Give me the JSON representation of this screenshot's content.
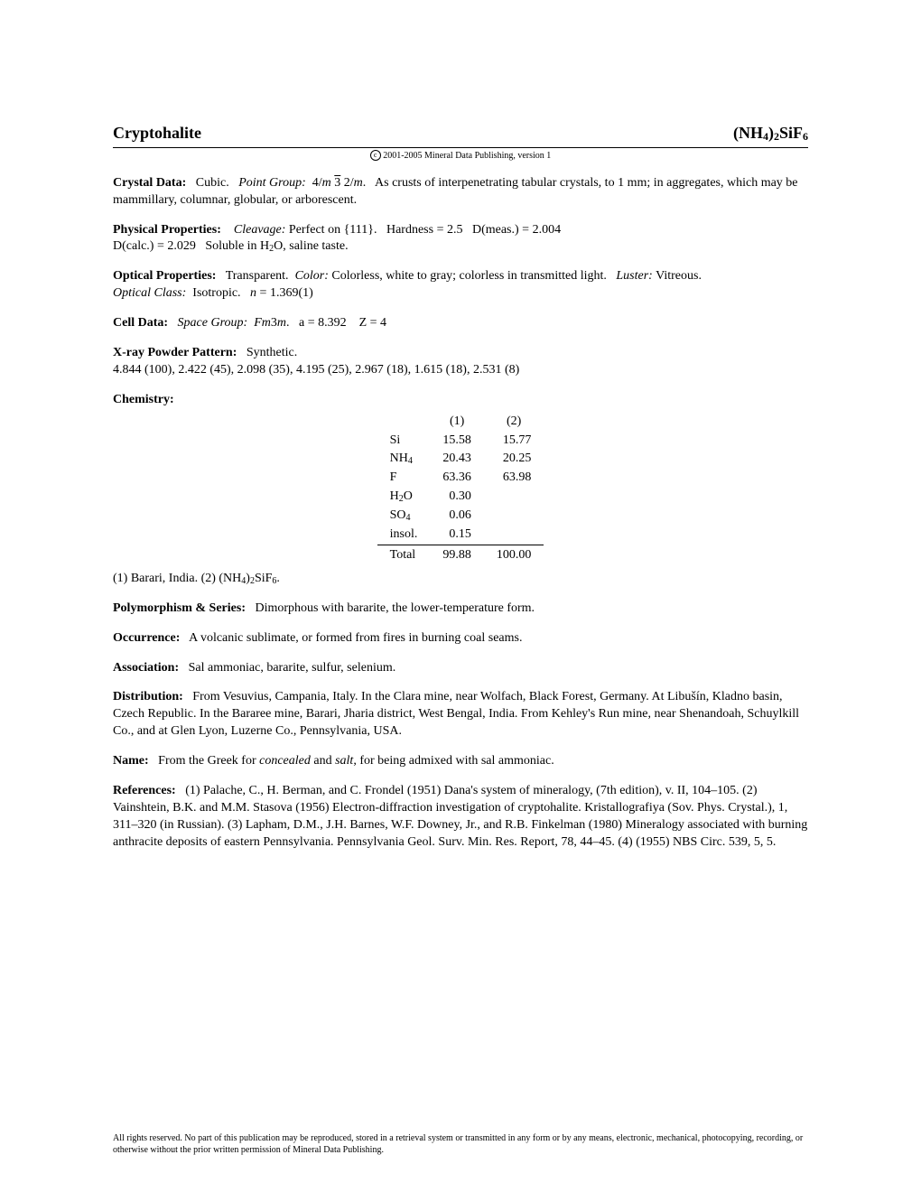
{
  "header": {
    "title": "Cryptohalite",
    "formula_html": "(NH<sub>4</sub>)<sub>2</sub>SiF<sub>6</sub>"
  },
  "copyright_line": "2001-2005 Mineral Data Publishing, version 1",
  "crystal_data": {
    "label": "Crystal Data:",
    "system": "Cubic.",
    "pg_label": "Point Group:",
    "pg_html": "4/<span class=\"pg\">m</span> <span class=\"overbar\">3</span> 2/<span class=\"pg\">m</span>.",
    "desc": "As crusts of interpenetrating tabular crystals, to 1 mm; in aggregates, which may be mammillary, columnar, globular, or arborescent."
  },
  "physical": {
    "label": "Physical Properties:",
    "cleavage_label": "Cleavage:",
    "cleavage": "Perfect on {111}.",
    "hardness": "Hardness = 2.5",
    "dmeas": "D(meas.) = 2.004",
    "dcalc": "D(calc.) = 2.029",
    "sol_html": "Soluble in H<sub>2</sub>O, saline taste."
  },
  "optical": {
    "label": "Optical Properties:",
    "trans": "Transparent.",
    "color_label": "Color:",
    "color": "Colorless, white to gray; colorless in transmitted light.",
    "luster_label": "Luster:",
    "luster": "Vitreous.",
    "class_label": "Optical Class:",
    "class": "Isotropic.",
    "n_html": "<span class=\"pg\">n</span> = 1.369(1)"
  },
  "cell": {
    "label": "Cell Data:",
    "sg_label": "Space Group:",
    "sg_html": "<span class=\"pg\">Fm</span>3<span class=\"pg\">m</span>.",
    "a": "a = 8.392",
    "z": "Z = 4"
  },
  "xrpd": {
    "label": "X-ray Powder Pattern:",
    "source": "Synthetic.",
    "lines": "4.844 (100), 2.422 (45), 2.098 (35), 4.195 (25), 2.967 (18), 1.615 (18), 2.531 (8)"
  },
  "chemistry": {
    "label": "Chemistry:",
    "columns": [
      "(1)",
      "(2)"
    ],
    "rows": [
      {
        "name_html": "Si",
        "c1": "15.58",
        "c2": "15.77"
      },
      {
        "name_html": "NH<sub>4</sub>",
        "c1": "20.43",
        "c2": "20.25"
      },
      {
        "name_html": "F",
        "c1": "63.36",
        "c2": "63.98"
      },
      {
        "name_html": "H<sub>2</sub>O",
        "c1": "0.30",
        "c2": ""
      },
      {
        "name_html": "SO<sub>4</sub>",
        "c1": "0.06",
        "c2": ""
      },
      {
        "name_html": "insol.",
        "c1": "0.15",
        "c2": ""
      }
    ],
    "total_label": "Total",
    "totals": [
      "99.88",
      "100.00"
    ],
    "note_html": "(1) Barari, India. (2) (NH<sub>4</sub>)<sub>2</sub>SiF<sub>6</sub>."
  },
  "polymorphism": {
    "label": "Polymorphism & Series:",
    "text": "Dimorphous with bararite, the lower-temperature form."
  },
  "occurrence": {
    "label": "Occurrence:",
    "text": "A volcanic sublimate, or formed from fires in burning coal seams."
  },
  "association": {
    "label": "Association:",
    "text": "Sal ammoniac, bararite, sulfur, selenium."
  },
  "distribution": {
    "label": "Distribution:",
    "text": "From Vesuvius, Campania, Italy. In the Clara mine, near Wolfach, Black Forest, Germany. At Libušín, Kladno basin, Czech Republic. In the Bararee mine, Barari, Jharia district, West Bengal, India. From Kehley's Run mine, near Shenandoah, Schuylkill Co., and at Glen Lyon, Luzerne Co., Pennsylvania, USA."
  },
  "name": {
    "label": "Name:",
    "text_html": "From the Greek for <span class=\"pg\">concealed</span> and <span class=\"pg\">salt</span>, for being admixed with sal ammoniac."
  },
  "references": {
    "label": "References:",
    "text": "(1) Palache, C., H. Berman, and C. Frondel (1951) Dana's system of mineralogy, (7th edition), v. II, 104–105. (2) Vainshtein, B.K. and M.M. Stasova (1956) Electron-diffraction investigation of cryptohalite. Kristallografiya (Sov. Phys. Crystal.), 1, 311–320 (in Russian). (3) Lapham, D.M., J.H. Barnes, W.F. Downey, Jr., and R.B. Finkelman (1980) Mineralogy associated with burning anthracite deposits of eastern Pennsylvania. Pennsylvania Geol. Surv. Min. Res. Report, 78, 44–45. (4) (1955) NBS Circ. 539, 5, 5."
  },
  "footer": "All rights reserved. No part of this publication may be reproduced, stored in a retrieval system or transmitted in any form or by any means, electronic, mechanical, photocopying, recording, or otherwise without the prior written permission of Mineral Data Publishing."
}
